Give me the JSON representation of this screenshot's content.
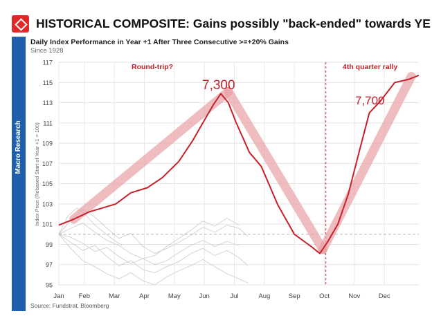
{
  "header": {
    "title": "HISTORICAL COMPOSITE: Gains possibly \"back-ended\" towards YE",
    "logo_icon": "diamond-logo-icon"
  },
  "sidebar": {
    "label": "Macro Research"
  },
  "colors": {
    "brand_red": "#c8202a",
    "highlight_pink": "#e8a0a4",
    "sidebar_blue": "#1f5fae",
    "grey_lines": "#c8c8c8"
  },
  "footer": {
    "source": "Source: Fundstrat, Bloomberg"
  },
  "chart_data": {
    "type": "line",
    "title": "Daily Index Performance in Year +1 After Three Consecutive >=+20% Gains",
    "subtitle": "Since 1928",
    "ylabel": "Index Price (Rebased Start of Year +1 = 100)",
    "xlabel": "",
    "ylim": [
      95,
      117
    ],
    "xlim": [
      0,
      12
    ],
    "yticks": [
      95,
      97,
      99,
      101,
      103,
      105,
      107,
      109,
      111,
      113,
      115,
      117
    ],
    "reference_line": 100,
    "x_tick_labels": [
      "Jan",
      "Feb",
      "Mar",
      "Apr",
      "May",
      "Jun",
      "Jul",
      "Aug",
      "Sep",
      "Oct",
      "Nov",
      "Dec"
    ],
    "x_tick_positions": [
      0,
      0.85,
      1.85,
      2.85,
      3.85,
      4.85,
      5.85,
      6.85,
      7.85,
      8.85,
      9.85,
      10.85
    ],
    "composite": {
      "name": "Historical composite",
      "x": [
        0,
        0.5,
        1.0,
        1.45,
        1.9,
        2.4,
        2.95,
        3.45,
        4.0,
        4.45,
        4.8,
        5.15,
        5.4,
        5.65,
        5.9,
        6.35,
        6.75,
        7.3,
        7.85,
        8.45,
        8.7,
        8.95,
        9.3,
        9.65,
        10.05,
        10.35,
        10.7,
        11.2,
        11.65,
        12.0
      ],
      "y": [
        100.9,
        101.5,
        102.2,
        102.6,
        103.0,
        104.1,
        104.6,
        105.6,
        107.2,
        109.2,
        111.0,
        112.8,
        113.9,
        113.0,
        111.1,
        108.1,
        106.7,
        102.9,
        100.0,
        98.7,
        98.1,
        99.2,
        101.0,
        104.0,
        108.6,
        112.0,
        113.1,
        115.0,
        115.3,
        115.7
      ]
    },
    "highlight_segments": [
      {
        "name": "Round-trip rise",
        "x": [
          0.5,
          5.65
        ],
        "y": [
          101.5,
          114.1
        ]
      },
      {
        "name": "Round-trip fall",
        "x": [
          5.65,
          8.8
        ],
        "y": [
          114.1,
          98.5
        ]
      },
      {
        "name": "Q4 rally",
        "x": [
          8.8,
          11.75
        ],
        "y": [
          98.5,
          115.6
        ]
      }
    ],
    "grey_series": [
      {
        "x": [
          0,
          0.4,
          0.8,
          1.2,
          1.6,
          2.0,
          2.4,
          2.8,
          3.2,
          3.6,
          4.0,
          4.4,
          4.8,
          5.2,
          5.6,
          6.0,
          6.3
        ],
        "y": [
          100,
          101.4,
          102.5,
          101.7,
          100.6,
          99.6,
          100.1,
          98.8,
          98.1,
          98.6,
          99.2,
          99.9,
          100.7,
          100.2,
          100.9,
          100.6,
          99.8
        ]
      },
      {
        "x": [
          0,
          0.4,
          0.8,
          1.2,
          1.6,
          2.0,
          2.4,
          2.8,
          3.2,
          3.6,
          4.0,
          4.4,
          4.8,
          5.2,
          5.6,
          6.0,
          6.3
        ],
        "y": [
          100,
          99.2,
          98.4,
          98.9,
          97.8,
          96.9,
          97.4,
          96.5,
          96.2,
          96.8,
          97.3,
          98.1,
          98.6,
          97.9,
          98.4,
          97.7,
          96.9
        ]
      },
      {
        "x": [
          0,
          0.4,
          0.8,
          1.2,
          1.6,
          2.0,
          2.4,
          2.8,
          3.2,
          3.6,
          4.0,
          4.4,
          4.8,
          5.2,
          5.6,
          6.0
        ],
        "y": [
          100,
          100.6,
          101.1,
          100.2,
          99.4,
          98.9,
          98.1,
          97.6,
          97.9,
          98.8,
          99.6,
          100.4,
          101.3,
          100.8,
          101.6,
          100.9
        ]
      },
      {
        "x": [
          0,
          0.4,
          0.8,
          1.2,
          1.6,
          2.0,
          2.4,
          2.8,
          3.2,
          3.6,
          4.0,
          4.4,
          4.8,
          5.2,
          5.6,
          6.0,
          6.3
        ],
        "y": [
          100,
          98.6,
          97.4,
          96.8,
          96.1,
          95.6,
          96.2,
          95.4,
          95.0,
          95.8,
          96.4,
          96.9,
          97.5,
          96.8,
          96.1,
          95.6,
          95.2
        ]
      },
      {
        "x": [
          0,
          0.3,
          0.6,
          0.9,
          1.2,
          1.5,
          1.8,
          2.1
        ],
        "y": [
          100,
          101.8,
          102.6,
          101.9,
          100.9,
          100.2,
          99.5,
          98.9
        ]
      },
      {
        "x": [
          0,
          0.4,
          0.8,
          1.2,
          1.6,
          2.0,
          2.4,
          2.8,
          3.2,
          3.6,
          4.0,
          4.4,
          4.8,
          5.2,
          5.6,
          6.0
        ],
        "y": [
          100,
          99.7,
          99.1,
          98.3,
          98.7,
          97.8,
          97.1,
          97.6,
          97.0,
          97.4,
          98.2,
          98.9,
          99.4,
          98.8,
          99.3,
          98.9
        ]
      }
    ],
    "annotations": {
      "round_trip": "Round-trip?",
      "q4_rally": "4th quarter rally",
      "peak_value": "7,300",
      "year_end_value": "7,700"
    },
    "q4_divider_x": 8.9
  }
}
